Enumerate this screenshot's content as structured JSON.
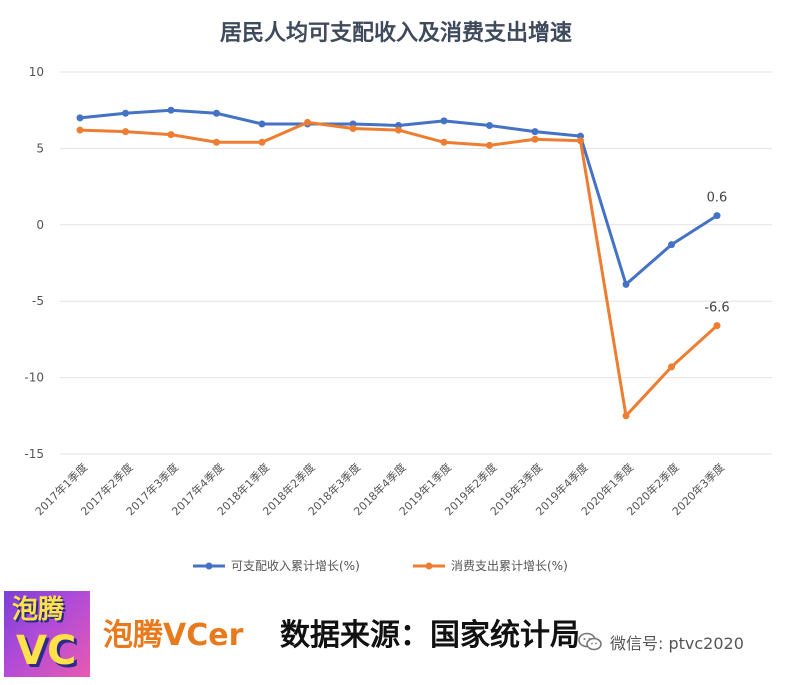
{
  "chart_data": {
    "type": "line",
    "title": "居民人均可支配收入及消费支出增速",
    "categories": [
      "2017年1季度",
      "2017年2季度",
      "2017年3季度",
      "2017年4季度",
      "2018年1季度",
      "2018年2季度",
      "2018年3季度",
      "2018年4季度",
      "2019年1季度",
      "2019年2季度",
      "2019年3季度",
      "2019年4季度",
      "2020年1季度",
      "2020年2季度",
      "2020年3季度"
    ],
    "series": [
      {
        "name": "可支配收入累计增长(%)",
        "color": "#4472c4",
        "values": [
          7.0,
          7.3,
          7.5,
          7.3,
          6.6,
          6.6,
          6.6,
          6.5,
          6.8,
          6.5,
          6.1,
          5.8,
          -3.9,
          -1.3,
          0.6
        ]
      },
      {
        "name": "消费支出累计增长(%)",
        "color": "#ed7d31",
        "values": [
          6.2,
          6.1,
          5.9,
          5.4,
          5.4,
          6.7,
          6.3,
          6.2,
          5.4,
          5.2,
          5.6,
          5.5,
          -12.5,
          -9.3,
          -6.6
        ]
      }
    ],
    "data_labels": [
      "0.6",
      "-6.6"
    ],
    "yticks": [
      "10",
      "5",
      "0",
      "-5",
      "-10",
      "-15"
    ],
    "ylim": [
      -15,
      10
    ],
    "grid": true,
    "legend_position": "bottom"
  },
  "footer": {
    "logo_text": "泡腾",
    "logo_v": "VC",
    "brand": "泡腾VCer",
    "source": "数据来源：国家统计局",
    "wechat_label": "微信号: ptvc2020",
    "wechat_icon": "wechat-icon"
  }
}
